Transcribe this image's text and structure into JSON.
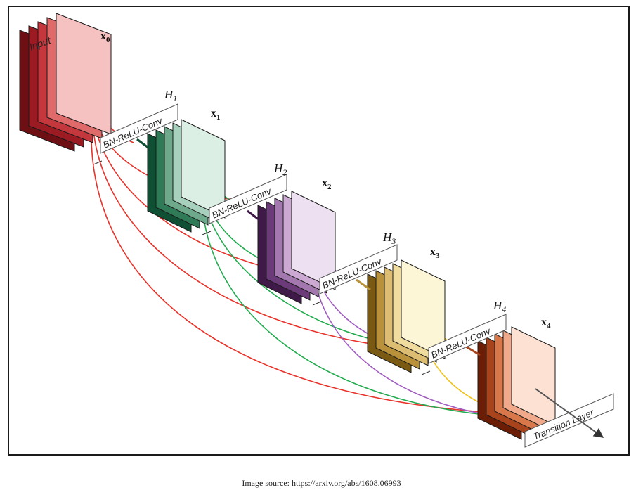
{
  "input_label": "Input",
  "blocks": [
    {
      "x_var": "x",
      "x_sub": "0"
    },
    {
      "h_var": "H",
      "h_sub": "1",
      "layer_label": "BN-ReLU-Conv",
      "x_var": "x",
      "x_sub": "1"
    },
    {
      "h_var": "H",
      "h_sub": "2",
      "layer_label": "BN-ReLU-Conv",
      "x_var": "x",
      "x_sub": "2"
    },
    {
      "h_var": "H",
      "h_sub": "3",
      "layer_label": "BN-ReLU-Conv",
      "x_var": "x",
      "x_sub": "3"
    },
    {
      "h_var": "H",
      "h_sub": "4",
      "layer_label": "BN-ReLU-Conv",
      "x_var": "x",
      "x_sub": "4"
    }
  ],
  "transition_label": "Transition Layer",
  "caption": "Image source: https://arxiv.org/abs/1608.06993",
  "colors": {
    "stack0": [
      "#6e0f14",
      "#9c1a22",
      "#c4383d",
      "#e06a6a",
      "#f6c1c1"
    ],
    "stack1": [
      "#0f4f33",
      "#2f7a57",
      "#6da98a",
      "#a8d1bd",
      "#dcefe4"
    ],
    "stack2": [
      "#3f1a48",
      "#6b3a78",
      "#a278ae",
      "#cba9d2",
      "#ede0f0"
    ],
    "stack3": [
      "#7a5a12",
      "#b8913a",
      "#dcbd72",
      "#f0dc9f",
      "#fdf6d6"
    ],
    "stack4": [
      "#6b1d06",
      "#a8431c",
      "#d8784a",
      "#f0a98a",
      "#fde2d4"
    ],
    "curve_red": "#e8322a",
    "curve_green": "#22aa4e",
    "curve_purple": "#a05cc0",
    "curve_yellow": "#f2c21a"
  }
}
